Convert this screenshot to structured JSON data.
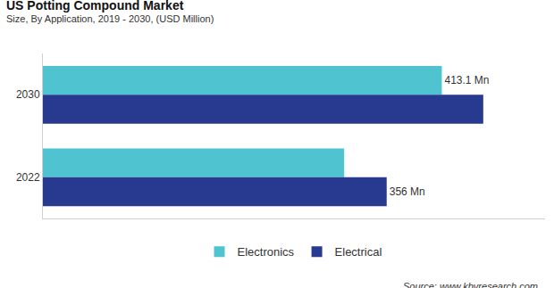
{
  "chart_data": {
    "type": "bar",
    "orientation": "horizontal",
    "title": "US Potting Compound Market",
    "subtitle": "Size, By Application, 2019 - 2030, (USD Million)",
    "annotations": [
      "Source: www.kbvresearch.com"
    ],
    "categories": [
      "2030",
      "2022"
    ],
    "series": [
      {
        "name": "Electronics",
        "color": "#4fc3cf",
        "values": [
          413.1,
          312
        ],
        "value_labels": [
          "413.1 Mn",
          null
        ]
      },
      {
        "name": "Electrical",
        "color": "#283a8f",
        "values": [
          456,
          356
        ],
        "value_labels": [
          null,
          "356 Mn"
        ]
      }
    ],
    "xlim": [
      0,
      520
    ],
    "xticks": [],
    "tick_labels": "y",
    "legend": "bottom",
    "grid": false,
    "data_labels": true
  }
}
